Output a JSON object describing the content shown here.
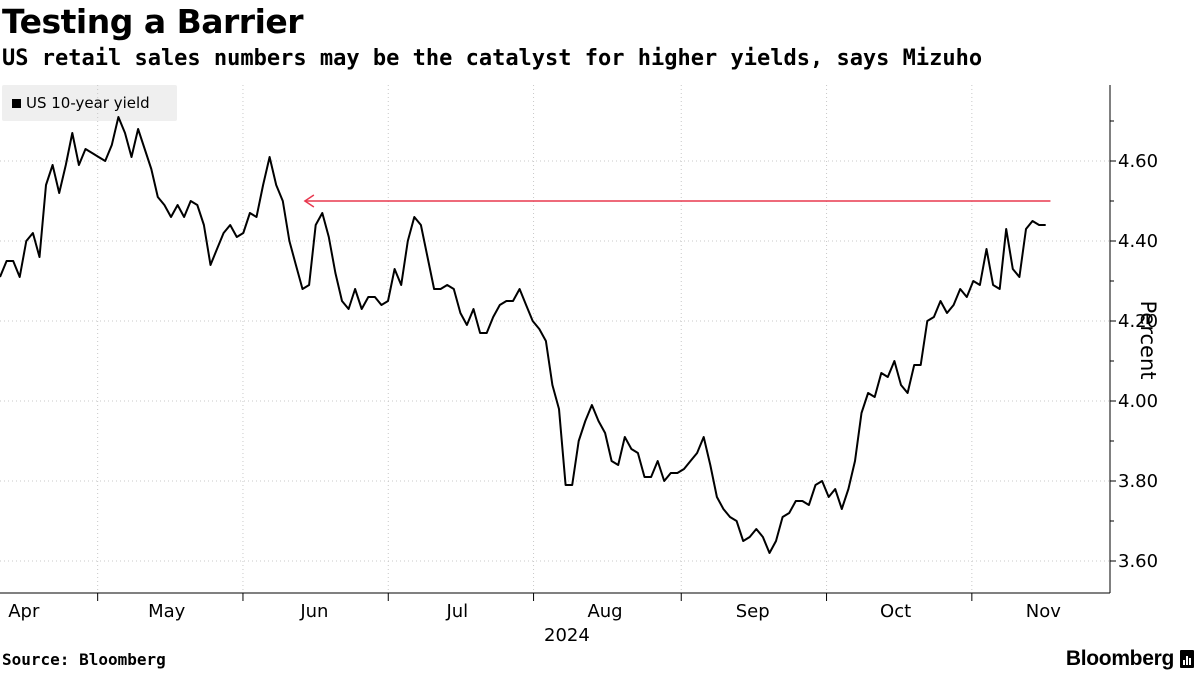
{
  "title": "Testing a Barrier",
  "subtitle": "US retail sales numbers may be the catalyst for higher yields, says Mizuho",
  "source": "Source: Bloomberg",
  "brand": "Bloomberg",
  "colors": {
    "line": "#000000",
    "arrow": "#e8384f",
    "grid": "#c8c8c8"
  },
  "chart_data": {
    "type": "line",
    "title": "Testing a Barrier",
    "subtitle": "US retail sales numbers may be the catalyst for higher yields, says Mizuho",
    "legend": [
      "US 10-year yield"
    ],
    "legend_position": "top-left",
    "xlabel": "2024",
    "ylabel": "Percent",
    "y_axis_side": "right",
    "ylim": [
      3.52,
      4.79
    ],
    "yticks": [
      3.6,
      3.8,
      4.0,
      4.2,
      4.4,
      4.6
    ],
    "ytick_labels": [
      "3.60",
      "3.80",
      "4.00",
      "4.20",
      "4.40",
      "4.60"
    ],
    "x_start": "2024-03-27",
    "x_end": "2024-11-15",
    "month_ticks": [
      {
        "label": "Apr",
        "day": 5
      },
      {
        "label": "May",
        "day": 35
      },
      {
        "label": "Jun",
        "day": 66
      },
      {
        "label": "Jul",
        "day": 96
      },
      {
        "label": "Aug",
        "day": 127
      },
      {
        "label": "Sep",
        "day": 158
      },
      {
        "label": "Oct",
        "day": 188
      },
      {
        "label": "Nov",
        "day": 219
      }
    ],
    "x_range_days": [
      0,
      233
    ],
    "year_label": "2024",
    "grid": "vertical dotted at month boundaries",
    "series": [
      {
        "name": "US 10-year yield",
        "values": [
          4.31,
          4.35,
          4.35,
          4.31,
          4.4,
          4.42,
          4.36,
          4.54,
          4.59,
          4.52,
          4.59,
          4.67,
          4.59,
          4.63,
          4.62,
          4.61,
          4.6,
          4.64,
          4.71,
          4.67,
          4.61,
          4.68,
          4.63,
          4.58,
          4.51,
          4.49,
          4.46,
          4.49,
          4.46,
          4.5,
          4.49,
          4.44,
          4.34,
          4.38,
          4.42,
          4.44,
          4.41,
          4.42,
          4.47,
          4.46,
          4.54,
          4.61,
          4.54,
          4.5,
          4.4,
          4.34,
          4.28,
          4.29,
          4.44,
          4.47,
          4.41,
          4.32,
          4.25,
          4.23,
          4.28,
          4.23,
          4.26,
          4.26,
          4.24,
          4.25,
          4.33,
          4.29,
          4.4,
          4.46,
          4.44,
          4.36,
          4.28,
          4.28,
          4.29,
          4.28,
          4.22,
          4.19,
          4.23,
          4.17,
          4.17,
          4.21,
          4.24,
          4.25,
          4.25,
          4.28,
          4.24,
          4.2,
          4.18,
          4.15,
          4.04,
          3.98,
          3.79,
          3.79,
          3.9,
          3.95,
          3.99,
          3.95,
          3.92,
          3.85,
          3.84,
          3.91,
          3.88,
          3.87,
          3.81,
          3.81,
          3.85,
          3.8,
          3.82,
          3.82,
          3.83,
          3.85,
          3.87,
          3.91,
          3.84,
          3.76,
          3.73,
          3.71,
          3.7,
          3.65,
          3.66,
          3.68,
          3.66,
          3.62,
          3.65,
          3.71,
          3.72,
          3.75,
          3.75,
          3.74,
          3.79,
          3.8,
          3.76,
          3.78,
          3.73,
          3.78,
          3.85,
          3.97,
          4.02,
          4.01,
          4.07,
          4.06,
          4.1,
          4.04,
          4.02,
          4.09,
          4.09,
          4.2,
          4.21,
          4.25,
          4.22,
          4.24,
          4.28,
          4.26,
          4.3,
          4.29,
          4.38,
          4.29,
          4.28,
          4.43,
          4.33,
          4.31,
          4.43,
          4.45,
          4.44,
          4.44
        ]
      }
    ],
    "annotation": {
      "type": "arrow",
      "level": 4.5,
      "direction": "left",
      "from_day": 219,
      "to_day": 64,
      "color": "#e8384f"
    }
  }
}
